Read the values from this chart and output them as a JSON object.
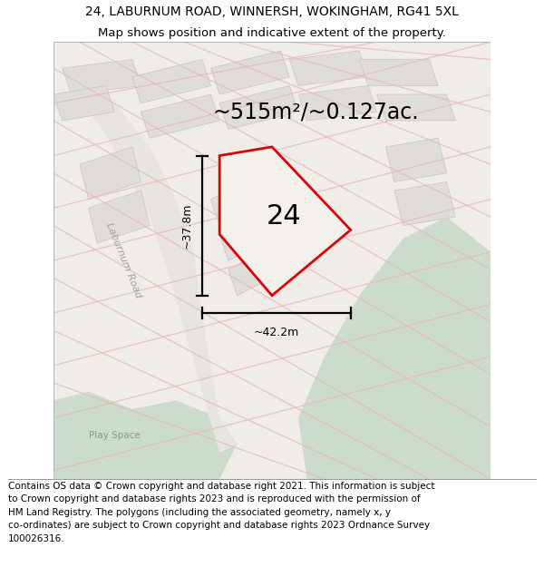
{
  "title_line1": "24, LABURNUM ROAD, WINNERSH, WOKINGHAM, RG41 5XL",
  "title_line2": "Map shows position and indicative extent of the property.",
  "footer_text": "Contains OS data © Crown copyright and database right 2021. This information is subject\nto Crown copyright and database rights 2023 and is reproduced with the permission of\nHM Land Registry. The polygons (including the associated geometry, namely x, y\nco-ordinates) are subject to Crown copyright and database rights 2023 Ordnance Survey\n100026316.",
  "area_label": "~515m²/~0.127ac.",
  "number_label": "24",
  "dim_v": "~37.8m",
  "dim_h": "~42.2m",
  "road_label": "Laburnum Road",
  "play_space_label": "Play Space",
  "bg_color": "#f0ece8",
  "green_color": "#ccdccc",
  "grid_line_color": "#e8b8b8",
  "building_fill": "#e0dcda",
  "building_edge": "#c8c4c0",
  "plot_edge_color": "#dd0000",
  "plot_fill": "#f4f0ec",
  "road_fill": "#e8e4e0",
  "title_fontsize": 10,
  "subtitle_fontsize": 9.5,
  "footer_fontsize": 7.5,
  "area_fontsize": 17,
  "number_fontsize": 22,
  "dim_fontsize": 9
}
